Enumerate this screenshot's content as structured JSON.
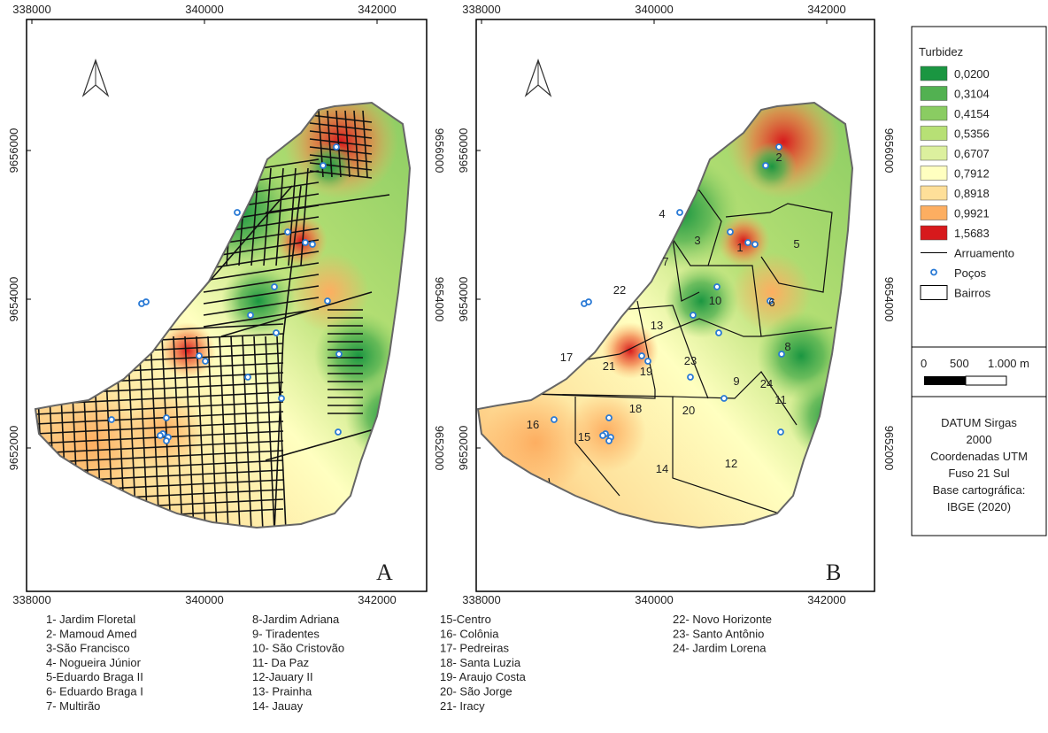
{
  "maps": [
    {
      "letter": "A"
    },
    {
      "letter": "B"
    }
  ],
  "coordinates": {
    "x": [
      338000,
      340000,
      342000
    ],
    "y": [
      9656000,
      9654000,
      9652000
    ]
  },
  "district_labels": [
    1,
    2,
    3,
    4,
    5,
    6,
    7,
    8,
    9,
    10,
    11,
    12,
    13,
    14,
    15,
    16,
    17,
    18,
    19,
    20,
    21,
    22,
    23,
    24
  ],
  "legend": {
    "title": "Turbidez",
    "classes": [
      {
        "label": "0,0200",
        "color": "#1a9641"
      },
      {
        "label": "0,3104",
        "color": "#52b151"
      },
      {
        "label": "0,4154",
        "color": "#8acc62"
      },
      {
        "label": "0,5356",
        "color": "#b7e075"
      },
      {
        "label": "0,6707",
        "color": "#dcf09e"
      },
      {
        "label": "0,7912",
        "color": "#ffffc0"
      },
      {
        "label": "0,8918",
        "color": "#fedf99"
      },
      {
        "label": "0,9921",
        "color": "#fdae61"
      },
      {
        "label": "1,5683",
        "color": "#d7191c"
      }
    ],
    "items": [
      "Arruamento",
      "Poços",
      "Bairros"
    ]
  },
  "scale": {
    "labels": [
      "0",
      "500",
      "1.000 m"
    ]
  },
  "datum": [
    "DATUM Sirgas",
    "2000",
    "Coordenadas UTM",
    "Fuso 21 Sul",
    "Base cartográfica:",
    "IBGE (2020)"
  ],
  "neighborhoods": [
    "1- Jardim Floretal",
    "2- Mamoud Amed",
    "3-São Francisco",
    "4- Nogueira Júnior",
    "5-Eduardo Braga II",
    "6- Eduardo Braga I",
    "7-  Multirão",
    "8-Jardim Adriana",
    "9- Tiradentes",
    "10- São Cristovão",
    "11- Da Paz",
    "12-Jauary II",
    "13- Prainha",
    "14- Jauay",
    "15-Centro",
    "16- Colônia",
    "17- Pedreiras",
    "18- Santa Luzia",
    "19- Araujo Costa",
    "20- São Jorge",
    "21- Iracy",
    "22- Novo Horizonte",
    "23-  Santo Antônio",
    "24- Jardim Lorena"
  ]
}
